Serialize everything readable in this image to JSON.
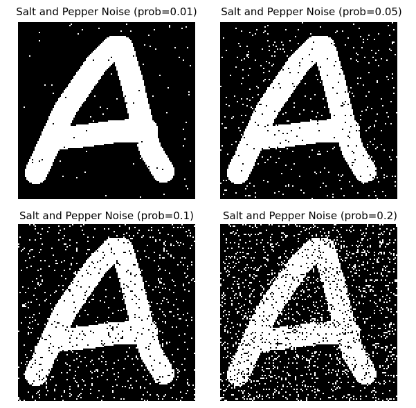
{
  "figure": {
    "panels": [
      {
        "title": "Salt and Pepper Noise (prob=0.01)",
        "noise_prob": 0.01,
        "image": "letter-a"
      },
      {
        "title": "Salt and Pepper Noise (prob=0.05)",
        "noise_prob": 0.05,
        "image": "letter-a"
      },
      {
        "title": "Salt and Pepper Noise (prob=0.1)",
        "noise_prob": 0.1,
        "image": "letter-a"
      },
      {
        "title": "Salt and Pepper Noise (prob=0.2)",
        "noise_prob": 0.2,
        "image": "letter-a"
      }
    ],
    "colors": {
      "foreground": "#ffffff",
      "background": "#000000"
    }
  }
}
